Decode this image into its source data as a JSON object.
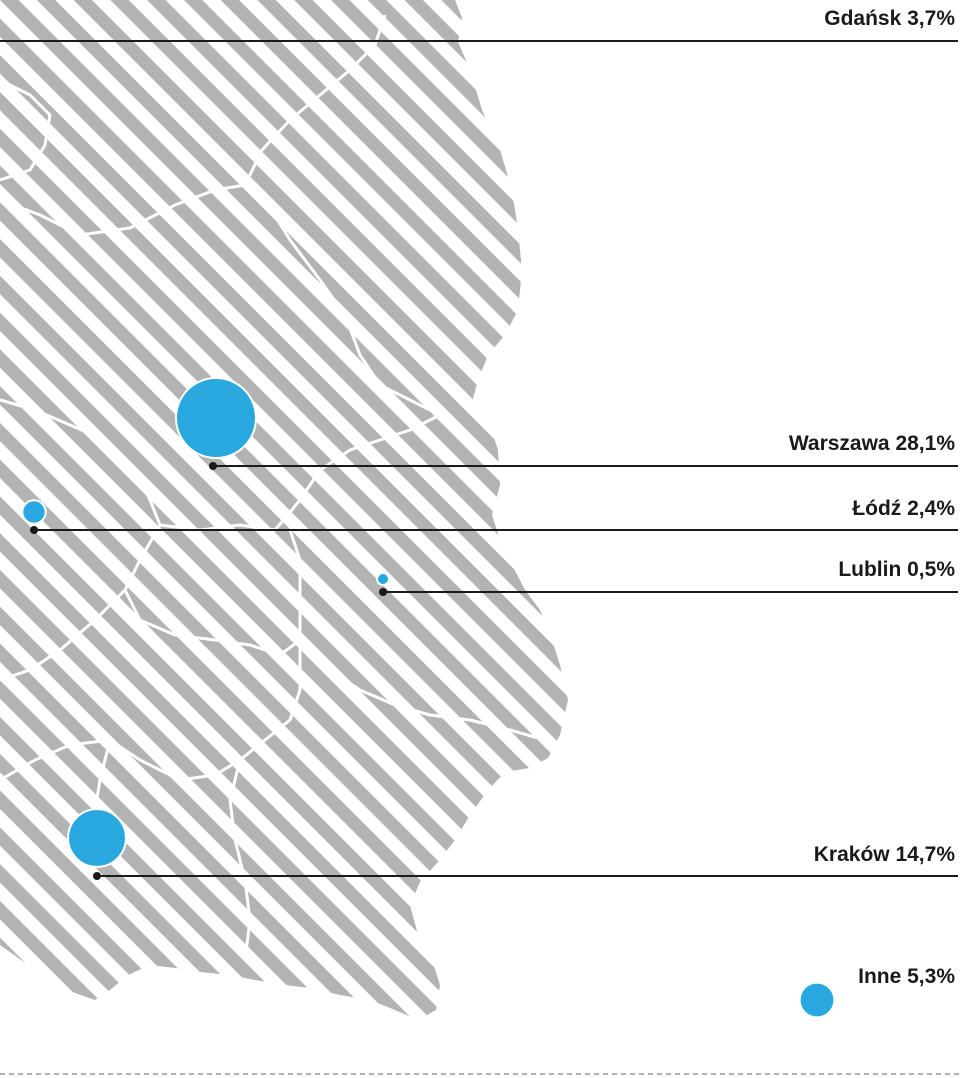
{
  "map": {
    "colors": {
      "bubble": "#29a8e0",
      "hatch": "#b3b3b3",
      "border": "#ffffff",
      "leader": "#1a1a1a",
      "divider": "#9a9a9a"
    },
    "cities": [
      {
        "id": "gdansk",
        "name": "Gdańsk",
        "share": 3.7,
        "label": "Gdańsk 3,7%"
      },
      {
        "id": "warszawa",
        "name": "Warszawa",
        "share": 28.1,
        "label": "Warszawa 28,1%"
      },
      {
        "id": "lodz",
        "name": "Łódź",
        "share": 2.4,
        "label": "Łódź 2,4%"
      },
      {
        "id": "lublin",
        "name": "Lublin",
        "share": 0.5,
        "label": "Lublin 0,5%"
      },
      {
        "id": "krakow",
        "name": "Kraków",
        "share": 14.7,
        "label": "Kraków 14,7%"
      },
      {
        "id": "inne",
        "name": "Inne",
        "share": 5.3,
        "label": "Inne 5,3%"
      }
    ]
  }
}
